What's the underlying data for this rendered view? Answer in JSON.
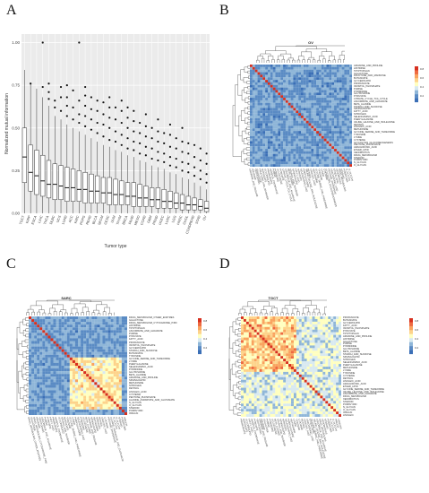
{
  "letters": {
    "a": "A",
    "b": "B",
    "c": "C",
    "d": "D"
  },
  "colors": {
    "low": "#3b6fb6",
    "mid": "#ffffbf",
    "high": "#d7301f",
    "box": "#333333",
    "panel_bg": "#ebebeb"
  },
  "boxplot": {
    "ylabel": "Normalized mutual information",
    "xlabel": "Tumor type",
    "y_ticks": [
      "0.00",
      "0.25",
      "0.50",
      "0.75",
      "1.00"
    ],
    "ylim": [
      0,
      1.05
    ],
    "tumors": [
      "TGCT",
      "KIRP",
      "ESCA",
      "LIHC",
      "THCA",
      "DLBC",
      "UCS",
      "LUAD",
      "ACC",
      "KIRC",
      "PCPG",
      "READ",
      "BLCA",
      "SKCM",
      "CESC",
      "UVM",
      "THYM",
      "BRCA",
      "PAAD",
      "MESO",
      "COAD",
      "GBM",
      "PRAD",
      "UCEC",
      "LUSC",
      "LGG",
      "HNSC",
      "CHOL",
      "COADREAD",
      "STAD",
      "OV"
    ]
  },
  "chart_data": {
    "type": "box",
    "title": "",
    "xlabel": "Tumor type",
    "ylabel": "Normalized mutual information",
    "ylim": [
      0,
      1.05
    ],
    "categories": [
      "TGCT",
      "KIRP",
      "ESCA",
      "LIHC",
      "THCA",
      "DLBC",
      "UCS",
      "LUAD",
      "ACC",
      "KIRC",
      "PCPG",
      "READ",
      "BLCA",
      "SKCM",
      "CESC",
      "UVM",
      "THYM",
      "BRCA",
      "PAAD",
      "MESO",
      "COAD",
      "GBM",
      "PRAD",
      "UCEC",
      "LUSC",
      "LGG",
      "HNSC",
      "CHOL",
      "COADREAD",
      "STAD",
      "OV"
    ],
    "series": [
      {
        "median": 0.33,
        "q1": 0.18,
        "q3": 0.5,
        "whislo": 0.0,
        "whishi": 0.84,
        "outliers": []
      },
      {
        "median": 0.24,
        "q1": 0.13,
        "q3": 0.4,
        "whislo": 0.0,
        "whishi": 0.76,
        "outliers": [
          0.76
        ]
      },
      {
        "median": 0.22,
        "q1": 0.11,
        "q3": 0.37,
        "whislo": 0.0,
        "whishi": 0.73,
        "outliers": []
      },
      {
        "median": 0.19,
        "q1": 0.1,
        "q3": 0.34,
        "whislo": 0.0,
        "whishi": 0.68,
        "outliers": [
          0.74,
          1.0
        ]
      },
      {
        "median": 0.17,
        "q1": 0.09,
        "q3": 0.31,
        "whislo": 0.0,
        "whishi": 0.63,
        "outliers": [
          0.67,
          0.71,
          0.76
        ]
      },
      {
        "median": 0.17,
        "q1": 0.08,
        "q3": 0.29,
        "whislo": 0.0,
        "whishi": 0.57,
        "outliers": [
          0.62,
          0.66
        ]
      },
      {
        "median": 0.16,
        "q1": 0.08,
        "q3": 0.28,
        "whislo": 0.0,
        "whishi": 0.55,
        "outliers": [
          0.6,
          0.68,
          0.74
        ]
      },
      {
        "median": 0.15,
        "q1": 0.07,
        "q3": 0.27,
        "whislo": 0.0,
        "whishi": 0.52,
        "outliers": [
          0.57,
          0.63,
          0.68,
          0.75
        ]
      },
      {
        "median": 0.15,
        "q1": 0.07,
        "q3": 0.26,
        "whislo": 0.0,
        "whishi": 0.5,
        "outliers": [
          0.55,
          0.62,
          0.72
        ]
      },
      {
        "median": 0.14,
        "q1": 0.07,
        "q3": 0.25,
        "whislo": 0.0,
        "whishi": 0.48,
        "outliers": [
          0.53,
          0.58,
          0.66,
          1.0
        ]
      },
      {
        "median": 0.14,
        "q1": 0.06,
        "q3": 0.24,
        "whislo": 0.0,
        "whishi": 0.46,
        "outliers": [
          0.51,
          0.57,
          0.63,
          0.69,
          0.74
        ]
      },
      {
        "median": 0.13,
        "q1": 0.06,
        "q3": 0.23,
        "whislo": 0.0,
        "whishi": 0.44,
        "outliers": [
          0.49,
          0.55,
          0.61,
          0.68
        ]
      },
      {
        "median": 0.13,
        "q1": 0.06,
        "q3": 0.22,
        "whislo": 0.0,
        "whishi": 0.42,
        "outliers": [
          0.47,
          0.53,
          0.6,
          0.66
        ]
      },
      {
        "median": 0.12,
        "q1": 0.06,
        "q3": 0.21,
        "whislo": 0.0,
        "whishi": 0.4,
        "outliers": [
          0.45,
          0.52,
          0.58,
          0.65
        ]
      },
      {
        "median": 0.12,
        "q1": 0.05,
        "q3": 0.21,
        "whislo": 0.0,
        "whishi": 0.39,
        "outliers": [
          0.43,
          0.5,
          0.56,
          0.62,
          0.68
        ]
      },
      {
        "median": 0.11,
        "q1": 0.05,
        "q3": 0.2,
        "whislo": 0.0,
        "whishi": 0.37,
        "outliers": [
          0.42,
          0.48,
          0.55,
          0.62
        ]
      },
      {
        "median": 0.11,
        "q1": 0.05,
        "q3": 0.19,
        "whislo": 0.0,
        "whishi": 0.36,
        "outliers": [
          0.4,
          0.46,
          0.53,
          0.6,
          0.66
        ]
      },
      {
        "median": 0.1,
        "q1": 0.05,
        "q3": 0.18,
        "whislo": 0.0,
        "whishi": 0.34,
        "outliers": [
          0.38,
          0.44,
          0.5,
          0.56,
          0.62
        ]
      },
      {
        "median": 0.1,
        "q1": 0.04,
        "q3": 0.18,
        "whislo": 0.0,
        "whishi": 0.33,
        "outliers": [
          0.37,
          0.42,
          0.48,
          0.54,
          0.6
        ]
      },
      {
        "median": 0.09,
        "q1": 0.04,
        "q3": 0.17,
        "whislo": 0.0,
        "whishi": 0.31,
        "outliers": [
          0.35,
          0.41,
          0.47,
          0.53
        ]
      },
      {
        "median": 0.09,
        "q1": 0.04,
        "q3": 0.16,
        "whislo": 0.0,
        "whishi": 0.3,
        "outliers": [
          0.34,
          0.39,
          0.45,
          0.51,
          0.58
        ]
      },
      {
        "median": 0.08,
        "q1": 0.04,
        "q3": 0.15,
        "whislo": 0.0,
        "whishi": 0.28,
        "outliers": [
          0.32,
          0.38,
          0.44,
          0.5
        ]
      },
      {
        "median": 0.08,
        "q1": 0.03,
        "q3": 0.15,
        "whislo": 0.0,
        "whishi": 0.27,
        "outliers": [
          0.31,
          0.36,
          0.42,
          0.48,
          0.55
        ]
      },
      {
        "median": 0.07,
        "q1": 0.03,
        "q3": 0.14,
        "whislo": 0.0,
        "whishi": 0.26,
        "outliers": [
          0.3,
          0.35,
          0.41,
          0.47
        ]
      },
      {
        "median": 0.07,
        "q1": 0.03,
        "q3": 0.13,
        "whislo": 0.0,
        "whishi": 0.24,
        "outliers": [
          0.28,
          0.33,
          0.39,
          0.46,
          0.52
        ]
      },
      {
        "median": 0.06,
        "q1": 0.03,
        "q3": 0.12,
        "whislo": 0.0,
        "whishi": 0.23,
        "outliers": [
          0.27,
          0.32,
          0.38,
          0.44
        ]
      },
      {
        "median": 0.06,
        "q1": 0.02,
        "q3": 0.11,
        "whislo": 0.0,
        "whishi": 0.21,
        "outliers": [
          0.25,
          0.3,
          0.36,
          0.42,
          0.5
        ]
      },
      {
        "median": 0.05,
        "q1": 0.02,
        "q3": 0.1,
        "whislo": 0.0,
        "whishi": 0.2,
        "outliers": [
          0.24,
          0.29,
          0.35,
          0.41
        ]
      },
      {
        "median": 0.05,
        "q1": 0.02,
        "q3": 0.09,
        "whislo": 0.0,
        "whishi": 0.18,
        "outliers": [
          0.22,
          0.27,
          0.33,
          0.4
        ]
      },
      {
        "median": 0.04,
        "q1": 0.02,
        "q3": 0.08,
        "whislo": 0.0,
        "whishi": 0.16,
        "outliers": [
          0.2,
          0.25,
          0.31,
          0.38
        ]
      },
      {
        "median": 0.03,
        "q1": 0.01,
        "q3": 0.07,
        "whislo": 0.0,
        "whishi": 0.14,
        "outliers": [
          0.18,
          0.23,
          0.29,
          0.35
        ]
      }
    ]
  },
  "heatmaps": [
    {
      "title": "OV",
      "legend_ticks": [
        "0.8",
        "0.6",
        "0.4",
        "0.2"
      ],
      "rows": [
        "ARGININE_AND_PROLINE",
        "HISTIDINE",
        "TRYPTOPHAN",
        "GALACTOSE",
        "FRUCTOSE_AND_MANNOSE",
        "BUTANOATE",
        "GLYCEROLIPID",
        "PROPANOATE",
        "INOSITOL_PHOSPHATE",
        "PURINE",
        "PYRIMIDINE",
        "GLUTATHIONE",
        "PYRUVATE",
        "CITRATE_CYCLE_TCA_CYCLE",
        "ASCORBATE_AND_ALDARATE",
        "BETA_ALANINE",
        "STARCH_AND_SUCROSE",
        "SPHINGOLIPID",
        "FATTY_ACID",
        "NITROGEN",
        "SELENOAMINO_ACID",
        "PHENYLALANINE",
        "VALINE_LEUCINE_AND_ISOLEUCINE",
        "RETINOL",
        "LINOLEIC_ACID",
        "METHIONINE",
        "GLYCINE_SERINE_AND_THREONINE",
        "TYROSINE",
        "LYSINE",
        "CYSTEINE",
        "GLYCOLYSIS_GLUCONEOGENESIS",
        "PENTOSE_PHOSPHATE",
        "ARACHIDONIC_ACID",
        "ETHER_LIPID",
        "XENOBIOTICS",
        "DRUG_METABOLISM",
        "STEROID",
        "PORPHYRIN",
        "N_GLYCAN",
        "O_GLYCAN"
      ],
      "colorscale": [
        "#3b6fb6",
        "#5a8bc4",
        "#8fb6d8",
        "#d8e9f0",
        "#ffffbf",
        "#fdd38a",
        "#f9a35e",
        "#ee6a41",
        "#d7301f"
      ]
    },
    {
      "title": "SARC",
      "legend_ticks": [
        "0.8",
        "0.6",
        "0.4",
        "0.2"
      ],
      "rows": [
        "DRUG_METABOLISM_OTHER_ENZYMES",
        "GALACTOSE",
        "DRUG_METABOLISM_CYTOCHROME_P450",
        "HISTIDINE",
        "TRYPTOPHAN",
        "ASCORBATE_AND_ALDARATE",
        "PURINE",
        "PYRUVATE",
        "FATTY_ACID",
        "PROPANOATE",
        "INOSITOL_PHOSPHATE",
        "GLYCEROLIPID",
        "STARCH_AND_SUCROSE",
        "BUTANOATE",
        "TYROSINE",
        "GLYCINE_SERINE_AND_THREONINE",
        "LYSINE",
        "PHENYLALANINE",
        "SELENOAMINO_ACID",
        "PYRIMIDINE",
        "GLUTATHIONE",
        "BETA_ALANINE",
        "ARGININE_AND_PROLINE",
        "SPHINGOLIPID",
        "METHIONINE",
        "NITROGEN",
        "RETINOL",
        "LINOLEIC_ACID",
        "CYSTEINE",
        "PENTOSE_PHOSPHATE",
        "ALANINE_ASPARTATE_AND_GLUTAMATE",
        "N_GLYCAN",
        "O_GLYCAN",
        "STEROID",
        "PORPHYRIN",
        "INSULIN"
      ],
      "colorscale": [
        "#3b6fb6",
        "#5a8bc4",
        "#8fb6d8",
        "#d8e9f0",
        "#ffffbf",
        "#fdd38a",
        "#f9a35e",
        "#ee6a41",
        "#d7301f"
      ]
    },
    {
      "title": "TGCT",
      "legend_ticks": [
        "0.8",
        "0.6",
        "0.4",
        "0.2"
      ],
      "rows": [
        "PROPANOATE",
        "BUTANOATE",
        "GLYCEROLIPID",
        "FATTY_ACID",
        "INOSITOL_PHOSPHATE",
        "PYRUVATE",
        "TRYPTOPHAN",
        "ARGININE_AND_PROLINE",
        "HISTIDINE",
        "GALACTOSE",
        "PURINE",
        "PYRIMIDINE",
        "GLUTATHIONE",
        "BETA_ALANINE",
        "STARCH_AND_SUCROSE",
        "SPHINGOLIPID",
        "NITROGEN",
        "SELENOAMINO_ACID",
        "PHENYLALANINE",
        "METHIONINE",
        "LYSINE",
        "TYROSINE",
        "CYSTEINE",
        "RETINOL",
        "LINOLEIC_ACID",
        "ARACHIDONIC_ACID",
        "ETHER_LIPID",
        "GLYCINE_SERINE_AND_THREONINE",
        "VALINE_LEUCINE_AND_ISOLEUCINE",
        "ASCORBATE_AND_ALDARATE",
        "DRUG_METABOLISM",
        "XENOBIOTICS",
        "STEROID",
        "PORPHYRIN",
        "N_GLYCAN",
        "O_GLYCAN",
        "INSULIN",
        "LINOLEIC"
      ],
      "colorscale": [
        "#3b6fb6",
        "#5a8bc4",
        "#8fb6d8",
        "#d8e9f0",
        "#ffffbf",
        "#fdd38a",
        "#f9a35e",
        "#ee6a41",
        "#d7301f"
      ]
    }
  ]
}
